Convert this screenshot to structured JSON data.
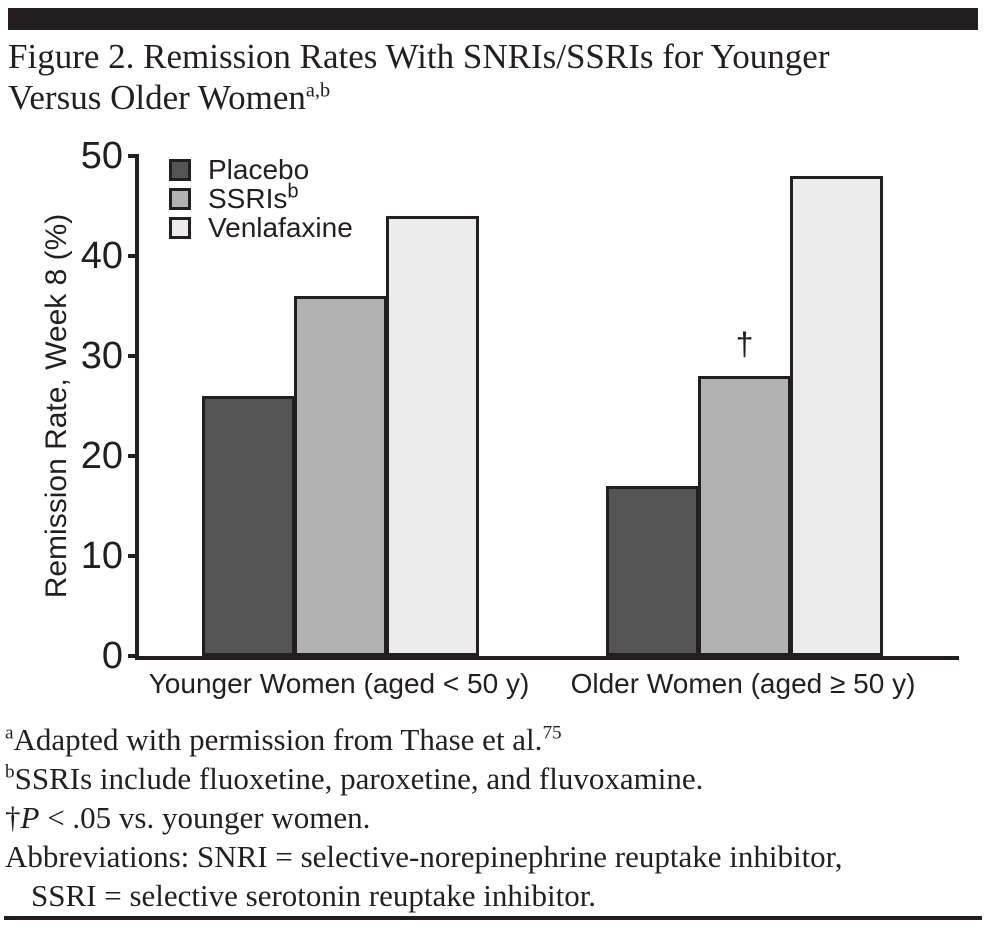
{
  "figure": {
    "title_line1": "Figure 2. Remission Rates With SNRIs/SSRIs for Younger",
    "title_line2": "Versus Older Women",
    "title_superscript": "a,b"
  },
  "chart_data": {
    "type": "bar",
    "categories": [
      "Younger Women (aged < 50 y)",
      "Older Women (aged ≥ 50 y)"
    ],
    "series": [
      {
        "name": "Placebo",
        "color": "#545454",
        "values": [
          26,
          17
        ]
      },
      {
        "name": "SSRIs",
        "name_sup": "b",
        "color": "#b2b2b2",
        "values": [
          36,
          28
        ]
      },
      {
        "name": "Venlafaxine",
        "color": "#ebebeb",
        "values": [
          44,
          48
        ]
      }
    ],
    "ylabel": "Remission Rate, Week 8 (%)",
    "ylim": [
      0,
      50
    ],
    "yticks": [
      0,
      10,
      20,
      30,
      40,
      50
    ],
    "grid": false,
    "legend_position": "top-left",
    "bar_outline_color": "#231f20",
    "annotations": [
      {
        "text": "†",
        "series_index": 1,
        "category_index": 1
      }
    ]
  },
  "footnotes": {
    "a_sup": "a",
    "a_text": "Adapted with permission from Thase et al.",
    "a_ref": "75",
    "b_sup": "b",
    "b_text": "SSRIs include fluoxetine, paroxetine, and fluvoxamine.",
    "dagger_sym": "†",
    "dagger_p": "P",
    "dagger_text": " < .05 vs. younger women.",
    "abbrev_line1": "Abbreviations: SNRI = selective-norepinephrine reuptake inhibitor,",
    "abbrev_line2": "SSRI = selective serotonin reuptake inhibitor."
  }
}
